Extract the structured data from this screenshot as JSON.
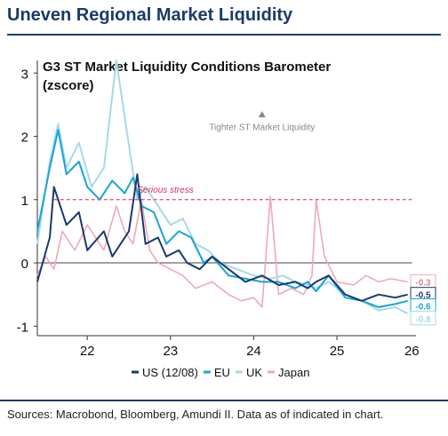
{
  "header": {
    "title": "Uneven Regional Market Liquidity"
  },
  "footer": {
    "sources": "Sources: Macrobond, Bloomberg, Amundi II. Data as of indicated in chart."
  },
  "colors": {
    "title": "#1a3a6b",
    "US": "#1a3a6b",
    "EU": "#1aa3d9",
    "UK": "#a8d8ea",
    "Japan": "#f0a8b8",
    "threshold": "#e0447a"
  },
  "chart_data": {
    "type": "line",
    "title": "G3 ST Market Liquidity Conditions Barometer",
    "subtitle": "(zscore)",
    "xlabel": "",
    "ylabel": "",
    "xlim": [
      2021.4,
      2025.95
    ],
    "ylim": [
      -1.15,
      3.2
    ],
    "x_ticks": [
      "22",
      "23",
      "24",
      "25",
      "26"
    ],
    "y_ticks": [
      "3",
      "2",
      "1",
      "0",
      "-1"
    ],
    "annotation": "Tighter ST Market Liquidity",
    "threshold": {
      "label": "Serious stress",
      "value": 1.0
    },
    "end_labels": [
      "-0.3",
      "-0.5",
      "-0.6",
      "-0.8"
    ],
    "series": [
      {
        "name": "US (12/08)",
        "end_value": -0.5,
        "x": [
          2021.4,
          2021.55,
          2021.6,
          2021.75,
          2021.9,
          2022.0,
          2022.2,
          2022.3,
          2022.5,
          2022.6,
          2022.7,
          2022.85,
          2022.95,
          2023.1,
          2023.2,
          2023.35,
          2023.5,
          2023.7,
          2023.9,
          2024.1,
          2024.3,
          2024.5,
          2024.65,
          2024.75,
          2024.9,
          2025.1,
          2025.3,
          2025.5,
          2025.7,
          2025.85
        ],
        "y": [
          -0.3,
          0.4,
          1.2,
          0.6,
          0.8,
          0.2,
          0.5,
          0.1,
          0.5,
          1.4,
          0.3,
          0.4,
          0.1,
          0.2,
          0.0,
          -0.1,
          0.1,
          -0.1,
          -0.3,
          -0.2,
          -0.35,
          -0.3,
          -0.4,
          -0.3,
          -0.2,
          -0.5,
          -0.6,
          -0.5,
          -0.55,
          -0.5
        ]
      },
      {
        "name": "EU",
        "end_value": -0.6,
        "x": [
          2021.4,
          2021.55,
          2021.65,
          2021.75,
          2021.9,
          2022.0,
          2022.15,
          2022.3,
          2022.45,
          2022.55,
          2022.65,
          2022.8,
          2022.95,
          2023.1,
          2023.25,
          2023.4,
          2023.5,
          2023.7,
          2023.9,
          2024.1,
          2024.3,
          2024.5,
          2024.65,
          2024.75,
          2024.9,
          2025.1,
          2025.3,
          2025.5,
          2025.7,
          2025.85
        ],
        "y": [
          0.5,
          1.5,
          2.1,
          1.4,
          1.6,
          1.2,
          1.0,
          1.3,
          1.1,
          1.35,
          0.9,
          0.8,
          0.3,
          0.5,
          0.4,
          0.0,
          0.1,
          -0.2,
          -0.25,
          -0.3,
          -0.3,
          -0.4,
          -0.3,
          -0.45,
          -0.2,
          -0.55,
          -0.6,
          -0.7,
          -0.65,
          -0.6
        ]
      },
      {
        "name": "UK",
        "end_value": -0.8,
        "x": [
          2021.4,
          2021.55,
          2021.65,
          2021.75,
          2021.9,
          2022.05,
          2022.2,
          2022.35,
          2022.45,
          2022.6,
          2022.7,
          2022.85,
          2023.0,
          2023.15,
          2023.3,
          2023.45,
          2023.6,
          2023.8,
          2024.0,
          2024.2,
          2024.35,
          2024.5,
          2024.65,
          2024.75,
          2024.9,
          2025.1,
          2025.3,
          2025.5,
          2025.7,
          2025.85
        ],
        "y": [
          0.3,
          1.6,
          2.2,
          1.5,
          1.9,
          1.2,
          1.5,
          3.2,
          2.3,
          1.0,
          1.2,
          0.9,
          0.6,
          0.7,
          0.3,
          0.2,
          0.0,
          -0.1,
          -0.2,
          -0.25,
          -0.2,
          -0.3,
          -0.35,
          -0.4,
          -0.3,
          -0.5,
          -0.6,
          -0.75,
          -0.7,
          -0.8
        ]
      },
      {
        "name": "Japan",
        "end_value": -0.3,
        "x": [
          2021.4,
          2021.5,
          2021.6,
          2021.7,
          2021.85,
          2022.0,
          2022.2,
          2022.35,
          2022.45,
          2022.55,
          2022.65,
          2022.75,
          2022.85,
          2023.0,
          2023.15,
          2023.3,
          2023.5,
          2023.7,
          2023.85,
          2024.0,
          2024.1,
          2024.2,
          2024.3,
          2024.45,
          2024.6,
          2024.7,
          2024.75,
          2024.85,
          2025.0,
          2025.2,
          2025.35,
          2025.5,
          2025.65,
          2025.85
        ],
        "y": [
          -0.2,
          0.1,
          -0.1,
          0.5,
          0.2,
          0.6,
          0.2,
          0.9,
          0.5,
          0.3,
          1.0,
          0.2,
          0.0,
          -0.1,
          -0.2,
          -0.4,
          -0.3,
          -0.5,
          -0.6,
          -0.55,
          -0.7,
          1.05,
          -0.5,
          -0.4,
          -0.5,
          -0.2,
          1.0,
          0.1,
          -0.3,
          -0.35,
          -0.2,
          -0.3,
          -0.25,
          -0.3
        ]
      }
    ]
  }
}
